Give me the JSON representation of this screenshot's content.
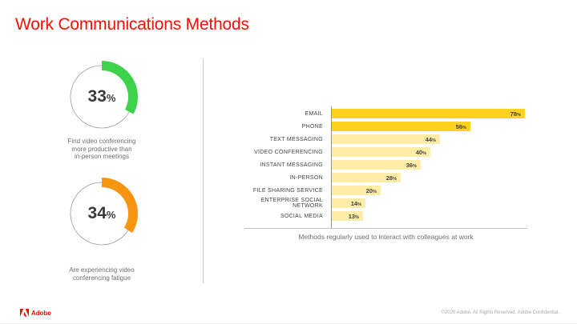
{
  "slide": {
    "title": "Work Communications Methods",
    "colors": {
      "title": "#FA0F00",
      "donut_green": "#3ED24B",
      "donut_orange": "#F79410",
      "bar_highlight": "#FFD21E",
      "bar_normal": "#FFECA6"
    },
    "footer": {
      "brand": "Adobe",
      "copyright": "©2020 Adobe. All Rights Reserved. Adobe Confidential."
    }
  },
  "donuts": [
    {
      "value": 33,
      "suffix": "%",
      "color": "#3ED24B",
      "caption_lines": [
        "Find video conferencing",
        "more productive than",
        "in-person meetings"
      ]
    },
    {
      "value": 34,
      "suffix": "%",
      "color": "#F79410",
      "caption_lines": [
        "Are experiencing video",
        "conferencing fatigue"
      ]
    }
  ],
  "chart_data": {
    "type": "bar",
    "orientation": "horizontal",
    "title": "",
    "caption": "Methods regularly used to interact with colleagues at work",
    "categories": [
      "EMAIL",
      "PHONE",
      "TEXT MESSAGING",
      "VIDEO CONFERENCING",
      "INSTANT MESSAGING",
      "IN-PERSON",
      "FILE SHARING SERVICE",
      "ENTERPRISE SOCIAL NETWORK",
      "SOCIAL MEDIA"
    ],
    "values": [
      78,
      56,
      44,
      40,
      36,
      28,
      20,
      14,
      13
    ],
    "unit": "%",
    "value_suffix": "%",
    "xlim": [
      0,
      100
    ],
    "grid": false,
    "legend": false,
    "value_labels": "inside-end",
    "bar_colors": [
      "#FFD21E",
      "#FFD21E",
      "#FFECA6",
      "#FFECA6",
      "#FFECA6",
      "#FFECA6",
      "#FFECA6",
      "#FFECA6",
      "#FFECA6"
    ]
  }
}
